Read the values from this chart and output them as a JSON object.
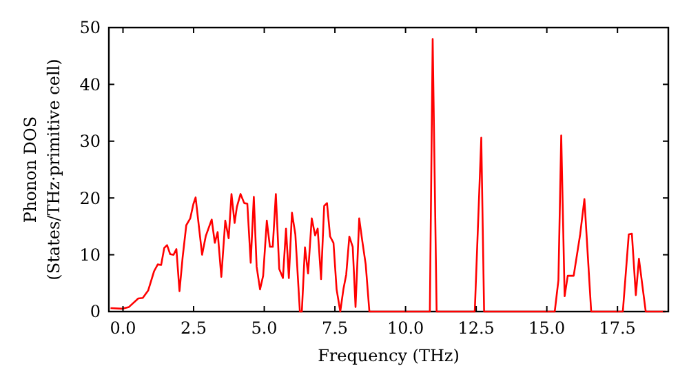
{
  "chart_data": {
    "type": "line",
    "xlabel": "Frequency (THz)",
    "ylabel": "Phonon DOS\n(States/THz·primitive cell)",
    "xlim": [
      -0.5,
      19.3
    ],
    "ylim": [
      0,
      50
    ],
    "xticks": [
      {
        "value": 0,
        "label": "0.0"
      },
      {
        "value": 2.5,
        "label": "2.5"
      },
      {
        "value": 5,
        "label": "5.0"
      },
      {
        "value": 7.5,
        "label": "7.5"
      },
      {
        "value": 10,
        "label": "10.0"
      },
      {
        "value": 12.5,
        "label": "12.5"
      },
      {
        "value": 15,
        "label": "15.0"
      },
      {
        "value": 17.5,
        "label": "17.5"
      }
    ],
    "yticks": [
      0,
      10,
      20,
      30,
      40,
      50
    ],
    "grid": false,
    "series": [
      {
        "color": "#ff0000",
        "x": [
          -0.44,
          -0.03,
          0.21,
          0.54,
          0.7,
          0.89,
          1.1,
          1.23,
          1.35,
          1.46,
          1.56,
          1.67,
          1.79,
          1.89,
          2.0,
          2.11,
          2.24,
          2.38,
          2.49,
          2.57,
          2.8,
          2.93,
          3.14,
          3.25,
          3.35,
          3.48,
          3.62,
          3.74,
          3.84,
          3.95,
          4.03,
          4.16,
          4.29,
          4.4,
          4.52,
          4.63,
          4.73,
          4.85,
          4.96,
          5.09,
          5.2,
          5.3,
          5.41,
          5.53,
          5.66,
          5.77,
          5.87,
          5.98,
          6.1,
          6.26,
          6.33,
          6.44,
          6.55,
          6.68,
          6.8,
          6.89,
          7.01,
          7.12,
          7.22,
          7.33,
          7.45,
          7.56,
          7.69,
          7.8,
          7.9,
          8.01,
          8.13,
          8.23,
          8.36,
          8.47,
          8.59,
          8.72,
          10.86,
          10.96,
          11.1,
          12.45,
          12.68,
          12.78,
          15.28,
          15.41,
          15.51,
          15.63,
          15.74,
          15.95,
          16.18,
          16.33,
          16.57,
          17.69,
          17.9,
          18.01,
          18.15,
          18.26,
          18.5,
          19.2
        ],
        "values": [
          0.6,
          0.5,
          0.8,
          2.3,
          2.4,
          3.7,
          7.1,
          8.3,
          8.2,
          11.2,
          11.7,
          10.1,
          10.0,
          11.0,
          3.6,
          9.5,
          15.2,
          16.4,
          18.9,
          20.1,
          10.0,
          13.3,
          16.2,
          12.1,
          14.0,
          6.1,
          16.0,
          12.9,
          20.7,
          15.6,
          18.4,
          20.7,
          19.1,
          19.0,
          8.6,
          20.2,
          7.9,
          3.9,
          6.3,
          16.0,
          11.4,
          11.4,
          20.7,
          7.5,
          5.9,
          14.6,
          5.9,
          17.4,
          13.6,
          0,
          0,
          11.3,
          6.7,
          16.4,
          13.4,
          14.6,
          5.7,
          18.6,
          19.1,
          13.2,
          12.1,
          3.9,
          0,
          3.9,
          6.5,
          13.2,
          11.4,
          0.8,
          16.4,
          12.4,
          8.3,
          0,
          0,
          48.0,
          0,
          0,
          30.6,
          0,
          0,
          5.5,
          31.0,
          2.7,
          6.3,
          6.3,
          13.6,
          19.8,
          0,
          0,
          13.6,
          13.7,
          2.9,
          9.3,
          0,
          0
        ]
      }
    ]
  }
}
